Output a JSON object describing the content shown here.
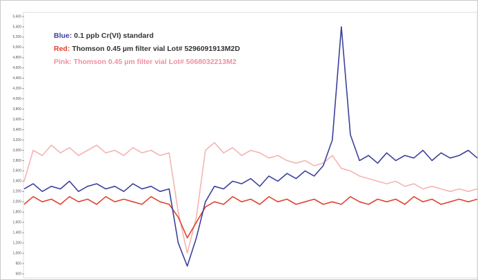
{
  "chart_data": {
    "type": "line",
    "xlim": [
      0,
      100
    ],
    "ylim": [
      520,
      5680
    ],
    "yticks": [
      600,
      800,
      {
        "value": 1000,
        "label": "1,000"
      },
      {
        "value": 1200,
        "label": "1,200"
      },
      {
        "value": 1400,
        "label": "1,400"
      },
      {
        "value": 1600,
        "label": "1,600"
      },
      {
        "value": 1800,
        "label": "1,800"
      },
      {
        "value": 2000,
        "label": "2,000"
      },
      {
        "value": 2200,
        "label": "2,200"
      },
      {
        "value": 2400,
        "label": "2,400"
      },
      {
        "value": 2600,
        "label": "2,600"
      },
      {
        "value": 2800,
        "label": "2,800"
      },
      {
        "value": 3000,
        "label": "3,000"
      },
      {
        "value": 3200,
        "label": "3,200"
      },
      {
        "value": 3400,
        "label": "3,400"
      },
      {
        "value": 3600,
        "label": "3,600"
      },
      {
        "value": 3800,
        "label": "3,800"
      },
      {
        "value": 4000,
        "label": "4,000"
      },
      {
        "value": 4200,
        "label": "4,200"
      },
      {
        "value": 4400,
        "label": "4,400"
      },
      {
        "value": 4600,
        "label": "4,600"
      },
      {
        "value": 4800,
        "label": "4,800"
      },
      {
        "value": 5000,
        "label": "5,000"
      },
      {
        "value": 5200,
        "label": "5,200"
      },
      {
        "value": 5400,
        "label": "5,400"
      },
      {
        "value": 5600,
        "label": "5,600"
      }
    ],
    "x": [
      0,
      2,
      4,
      6,
      8,
      10,
      12,
      14,
      16,
      18,
      20,
      22,
      24,
      26,
      28,
      30,
      32,
      34,
      36,
      38,
      40,
      42,
      44,
      46,
      48,
      50,
      52,
      54,
      56,
      58,
      60,
      62,
      64,
      66,
      68,
      70,
      72,
      74,
      76,
      78,
      80,
      82,
      84,
      86,
      88,
      90,
      92,
      94,
      96,
      98,
      100
    ],
    "series": [
      {
        "color": "#f4b4b0",
        "values": [
          2400,
          3000,
          2900,
          3100,
          2950,
          3050,
          2900,
          3000,
          3100,
          2950,
          3000,
          2900,
          3050,
          2950,
          3000,
          2900,
          2950,
          1800,
          1000,
          1700,
          3000,
          3150,
          2950,
          3050,
          2900,
          3000,
          2950,
          2850,
          2900,
          2800,
          2750,
          2800,
          2700,
          2750,
          2900,
          2650,
          2600,
          2500,
          2450,
          2400,
          2350,
          2400,
          2300,
          2350,
          2250,
          2300,
          2250,
          2200,
          2250,
          2200,
          2250
        ]
      },
      {
        "color": "#e0422e",
        "values": [
          1950,
          2100,
          2000,
          2050,
          1950,
          2100,
          2000,
          2050,
          1950,
          2100,
          2000,
          2050,
          2000,
          1950,
          2100,
          2000,
          1950,
          1700,
          1300,
          1600,
          1900,
          2000,
          1950,
          2100,
          2000,
          2050,
          1950,
          2100,
          2000,
          2050,
          1950,
          2000,
          2050,
          1950,
          2000,
          1950,
          2100,
          2000,
          1950,
          2050,
          2000,
          2050,
          1950,
          2100,
          2000,
          2050,
          1950,
          2000,
          2050,
          2000,
          2050
        ]
      },
      {
        "color": "#3b3f9a",
        "values": [
          2250,
          2350,
          2200,
          2300,
          2250,
          2400,
          2200,
          2300,
          2350,
          2250,
          2300,
          2200,
          2350,
          2250,
          2300,
          2200,
          2250,
          1200,
          750,
          1300,
          2000,
          2300,
          2250,
          2400,
          2350,
          2450,
          2300,
          2500,
          2400,
          2550,
          2450,
          2600,
          2500,
          2700,
          3200,
          5400,
          3300,
          2800,
          2900,
          2750,
          2950,
          2800,
          2900,
          2850,
          3000,
          2800,
          2950,
          2850,
          2900,
          3000,
          2850
        ]
      }
    ],
    "annotations": [
      {
        "label": "Blue:",
        "text": "0.1 ppb Cr(VI) standard",
        "color": "#3b3f9a"
      },
      {
        "label": "Red:",
        "text": "Thomson 0.45 µm filter vial Lot# 5296091913M2D",
        "color": "#e0422e"
      },
      {
        "label": "Pink:",
        "text": "Thomson 0.45 µm filter vial Lot# 5068032213M2",
        "color": "#f08fa0"
      }
    ]
  }
}
